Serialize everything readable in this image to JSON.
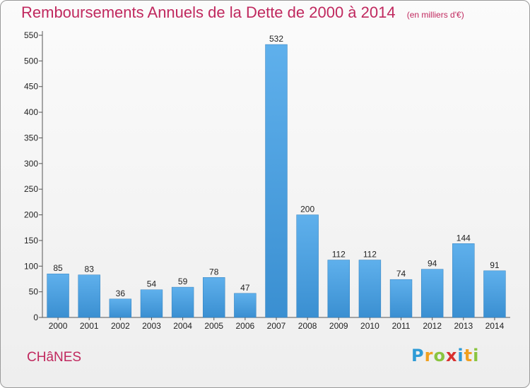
{
  "title": "Remboursements Annuels de la Dette de 2000 à 2014",
  "subtitle": "(en milliers d'€)",
  "commune": "CHâNES",
  "logo": {
    "text": "Proxiti",
    "letters": [
      {
        "ch": "P",
        "color": "#2e9bd6"
      },
      {
        "ch": "r",
        "color": "#f0a020"
      },
      {
        "ch": "o",
        "color": "#8ac43f"
      },
      {
        "ch": "x",
        "color": "#d9312f"
      },
      {
        "ch": "i",
        "color": "#2e9bd6"
      },
      {
        "ch": "t",
        "color": "#f0a020"
      },
      {
        "ch": "i",
        "color": "#8ac43f"
      }
    ]
  },
  "colors": {
    "accent": "#c0285e",
    "bar": "#3a8fd1",
    "bar_light": "#5fb0ec"
  },
  "chart_data": {
    "type": "bar",
    "categories": [
      "2000",
      "2001",
      "2002",
      "2003",
      "2004",
      "2005",
      "2006",
      "2007",
      "2008",
      "2009",
      "2010",
      "2011",
      "2012",
      "2013",
      "2014"
    ],
    "values": [
      85,
      83,
      36,
      54,
      59,
      78,
      47,
      532,
      200,
      112,
      112,
      74,
      94,
      144,
      91
    ],
    "ylim": [
      0,
      550
    ],
    "yticks": [
      0,
      50,
      100,
      150,
      200,
      250,
      300,
      350,
      400,
      450,
      500,
      550
    ],
    "grid": false
  }
}
